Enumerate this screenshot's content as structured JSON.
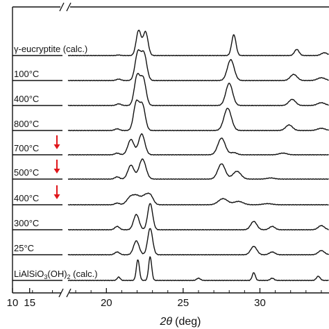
{
  "chart_data": {
    "type": "line",
    "title": "",
    "xlabel_symbol": "2θ",
    "xlabel_unit": "(deg)",
    "ylabel": "",
    "xlim": [
      10,
      34.5
    ],
    "axis_break": [
      12.5,
      17.5
    ],
    "xticks": [
      10,
      15,
      20,
      25,
      30
    ],
    "grid": false,
    "legend": "none",
    "line_color": "#111111",
    "annotation_color": "#e0161b",
    "annotation_marks": [
      "700°C",
      "500°C",
      "400°C"
    ],
    "series": [
      {
        "name": "γ-eucryptite (calc.)",
        "name_main": "γ-eucryptite (calc.)",
        "peaks": [
          [
            20.8,
            0.02,
            0.12
          ],
          [
            22.1,
            0.9,
            0.16
          ],
          [
            22.55,
            0.85,
            0.16
          ],
          [
            28.3,
            0.75,
            0.14
          ],
          [
            32.4,
            0.22,
            0.15
          ],
          [
            34.2,
            0.1,
            0.2
          ]
        ]
      },
      {
        "name": "100°C",
        "name_main": "100°C",
        "peaks": [
          [
            20.8,
            0.05,
            0.15
          ],
          [
            22.05,
            1.0,
            0.18
          ],
          [
            22.45,
            0.95,
            0.18
          ],
          [
            28.1,
            0.75,
            0.22
          ],
          [
            32.2,
            0.22,
            0.22
          ],
          [
            34.0,
            0.1,
            0.25
          ]
        ]
      },
      {
        "name": "400°C",
        "name_main": "400°C",
        "peaks": [
          [
            20.8,
            0.06,
            0.15
          ],
          [
            22.0,
            1.05,
            0.18
          ],
          [
            22.4,
            0.95,
            0.18
          ],
          [
            28.0,
            0.8,
            0.22
          ],
          [
            32.1,
            0.22,
            0.22
          ],
          [
            34.0,
            0.1,
            0.25
          ]
        ]
      },
      {
        "name": "800°C",
        "name_main": "800°C",
        "peaks": [
          [
            20.7,
            0.06,
            0.15
          ],
          [
            21.95,
            1.0,
            0.18
          ],
          [
            22.35,
            0.9,
            0.18
          ],
          [
            27.9,
            0.8,
            0.24
          ],
          [
            31.9,
            0.2,
            0.22
          ],
          [
            34.0,
            0.08,
            0.25
          ]
        ]
      },
      {
        "name": "700°C",
        "name_main": "700°C",
        "peaks": [
          [
            20.7,
            0.06,
            0.15
          ],
          [
            21.6,
            0.55,
            0.2
          ],
          [
            22.3,
            0.75,
            0.2
          ],
          [
            27.5,
            0.6,
            0.24
          ],
          [
            28.3,
            0.08,
            0.2
          ],
          [
            31.5,
            0.06,
            0.25
          ]
        ]
      },
      {
        "name": "500°C",
        "name_main": "500°C",
        "peaks": [
          [
            20.7,
            0.08,
            0.15
          ],
          [
            21.6,
            0.5,
            0.2
          ],
          [
            22.35,
            0.72,
            0.22
          ],
          [
            27.5,
            0.55,
            0.24
          ],
          [
            28.5,
            0.28,
            0.26
          ],
          [
            30.7,
            0.04,
            0.25
          ]
        ]
      },
      {
        "name": "400°C",
        "name_main": "400°C",
        "peaks": [
          [
            20.7,
            0.06,
            0.15
          ],
          [
            21.6,
            0.3,
            0.25
          ],
          [
            22.0,
            0.22,
            0.2
          ],
          [
            22.55,
            0.35,
            0.28
          ],
          [
            22.9,
            0.2,
            0.18
          ],
          [
            27.6,
            0.22,
            0.3
          ],
          [
            28.6,
            0.12,
            0.3
          ],
          [
            30.5,
            0.04,
            0.3
          ]
        ]
      },
      {
        "name": "300°C",
        "name_main": "300°C",
        "peaks": [
          [
            20.7,
            0.12,
            0.15
          ],
          [
            21.95,
            0.55,
            0.18
          ],
          [
            22.85,
            0.95,
            0.16
          ],
          [
            29.6,
            0.3,
            0.2
          ],
          [
            30.8,
            0.12,
            0.18
          ],
          [
            34.0,
            0.15,
            0.2
          ]
        ]
      },
      {
        "name": "25°C",
        "name_main": "25°C",
        "peaks": [
          [
            20.7,
            0.1,
            0.15
          ],
          [
            21.95,
            0.5,
            0.18
          ],
          [
            22.85,
            0.95,
            0.16
          ],
          [
            29.6,
            0.3,
            0.2
          ],
          [
            30.8,
            0.1,
            0.18
          ],
          [
            34.0,
            0.15,
            0.2
          ]
        ]
      },
      {
        "name": "LiAlSiO3(OH)2 (calc.)",
        "name_main": "LiAlSiO",
        "name_sub1": "3",
        "name_mid": "(OH)",
        "name_sub2": "2",
        "name_end": " (calc.)",
        "peaks": [
          [
            20.8,
            0.12,
            0.1
          ],
          [
            22.05,
            0.75,
            0.1
          ],
          [
            22.85,
            0.85,
            0.1
          ],
          [
            26.0,
            0.08,
            0.12
          ],
          [
            29.6,
            0.28,
            0.1
          ],
          [
            30.8,
            0.08,
            0.12
          ],
          [
            33.8,
            0.15,
            0.12
          ]
        ]
      }
    ]
  }
}
